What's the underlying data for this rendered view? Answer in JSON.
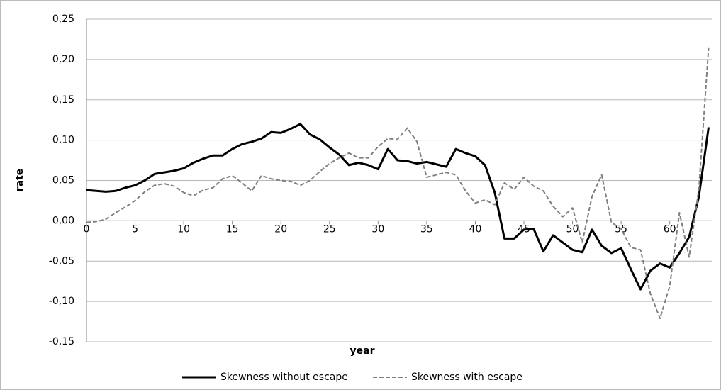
{
  "chart_data": {
    "type": "line",
    "xlabel": "year",
    "ylabel": "rate",
    "x": [
      0,
      1,
      2,
      3,
      4,
      5,
      6,
      7,
      8,
      9,
      10,
      11,
      12,
      13,
      14,
      15,
      16,
      17,
      18,
      19,
      20,
      21,
      22,
      23,
      24,
      25,
      26,
      27,
      28,
      29,
      30,
      31,
      32,
      33,
      34,
      35,
      36,
      37,
      38,
      39,
      40,
      41,
      42,
      43,
      44,
      45,
      46,
      47,
      48,
      49,
      50,
      51,
      52,
      53,
      54,
      55,
      56,
      57,
      58,
      59,
      60,
      61,
      62,
      63,
      64
    ],
    "series": [
      {
        "name": "Skewness without escape",
        "color": "#000000",
        "dash": false,
        "values": [
          0.038,
          0.037,
          0.036,
          0.037,
          0.041,
          0.044,
          0.05,
          0.058,
          0.06,
          0.062,
          0.065,
          0.072,
          0.077,
          0.081,
          0.081,
          0.089,
          0.095,
          0.098,
          0.102,
          0.11,
          0.109,
          0.114,
          0.12,
          0.107,
          0.101,
          0.091,
          0.082,
          0.069,
          0.072,
          0.069,
          0.064,
          0.089,
          0.075,
          0.074,
          0.071,
          0.073,
          0.07,
          0.067,
          0.089,
          0.084,
          0.08,
          0.069,
          0.035,
          -0.022,
          -0.022,
          -0.011,
          -0.01,
          -0.038,
          -0.018,
          -0.027,
          -0.036,
          -0.039,
          -0.011,
          -0.031,
          -0.04,
          -0.034,
          -0.06,
          -0.085,
          -0.062,
          -0.053,
          -0.058,
          -0.04,
          -0.02,
          0.03,
          0.116
        ]
      },
      {
        "name": "Skewness with escape",
        "color": "#7f7f7f",
        "dash": true,
        "values": [
          -0.002,
          -0.001,
          0.002,
          0.01,
          0.017,
          0.025,
          0.036,
          0.044,
          0.046,
          0.043,
          0.035,
          0.031,
          0.038,
          0.041,
          0.052,
          0.056,
          0.047,
          0.037,
          0.056,
          0.052,
          0.05,
          0.049,
          0.044,
          0.05,
          0.061,
          0.071,
          0.078,
          0.084,
          0.078,
          0.078,
          0.092,
          0.102,
          0.101,
          0.115,
          0.098,
          0.054,
          0.057,
          0.06,
          0.057,
          0.037,
          0.022,
          0.026,
          0.02,
          0.047,
          0.039,
          0.054,
          0.043,
          0.037,
          0.018,
          0.005,
          0.016,
          -0.027,
          0.03,
          0.057,
          -0.002,
          -0.01,
          -0.033,
          -0.036,
          -0.09,
          -0.121,
          -0.081,
          0.01,
          -0.045,
          0.04,
          0.215
        ]
      }
    ],
    "xlim": [
      0,
      64.4
    ],
    "xticks": [
      0,
      5,
      10,
      15,
      20,
      25,
      30,
      35,
      40,
      45,
      50,
      55,
      60
    ],
    "ylim": [
      -0.15,
      0.25
    ],
    "yticks": [
      {
        "value": -0.15,
        "label": "-0,15"
      },
      {
        "value": -0.1,
        "label": "-0,10"
      },
      {
        "value": -0.05,
        "label": "-0,05"
      },
      {
        "value": 0,
        "label": "0,00"
      },
      {
        "value": 0.05,
        "label": "0,05"
      },
      {
        "value": 0.1,
        "label": "0,10"
      },
      {
        "value": 0.15,
        "label": "0,15"
      },
      {
        "value": 0.2,
        "label": "0,20"
      },
      {
        "value": 0.25,
        "label": "0,25"
      }
    ],
    "grid": true,
    "legend": "bottom"
  }
}
